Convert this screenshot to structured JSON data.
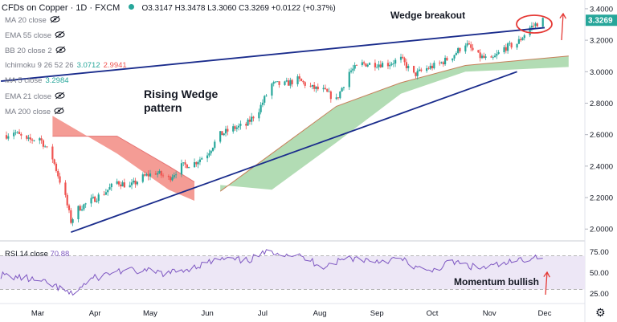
{
  "header": {
    "title": "CFDs on Copper · 1D · FXCM",
    "ohlc_text": "O3.3147 H3.3478 L3.3060 C3.3269 +0.0122 (+0.37%)"
  },
  "indicators": [
    {
      "label": "MA 20 close",
      "value": "",
      "value2": "",
      "hidden": true
    },
    {
      "label": "EMA 55 close",
      "value": "",
      "value2": "",
      "hidden": true
    },
    {
      "label": "BB 20 close 2",
      "value": "",
      "value2": "",
      "hidden": true
    },
    {
      "label": "Ichimoku 9 26 52 26",
      "value": "3.0712",
      "value2": "2.9941",
      "hidden": false
    },
    {
      "label": "MA 5 close",
      "value": "3.2984",
      "value2": "",
      "hidden": false
    },
    {
      "label": "EMA 21 close",
      "value": "",
      "value2": "",
      "hidden": true
    },
    {
      "label": "MA 200 close",
      "value": "",
      "value2": "",
      "hidden": true
    }
  ],
  "rsi": {
    "label": "RSI 14 close",
    "value": "70.88"
  },
  "colors": {
    "up": "#26a69a",
    "down": "#ef5350",
    "trend": "#1a2c8c",
    "cloud_bull": "#a5d6a7",
    "cloud_bear": "#f28b82",
    "rsi_line": "#7e57c2",
    "rsi_band": "#ede7f6",
    "price_tag": "#26a69a",
    "annot": "#e53935"
  },
  "chart_data": {
    "type": "candlestick",
    "symbol": "CFDs on Copper",
    "timeframe": "1D",
    "x_tick_labels": [
      "Mar",
      "Apr",
      "May",
      "Jun",
      "Jul",
      "Aug",
      "Sep",
      "Oct",
      "Nov",
      "Dec"
    ],
    "y_tick_labels": [
      "3.4000",
      "3.2000",
      "3.0000",
      "2.8000",
      "2.6000",
      "2.4000",
      "2.2000",
      "2.0000"
    ],
    "ylim": [
      1.94,
      3.42
    ],
    "last_price": "3.3269",
    "price_path": [
      [
        "2020-02-10",
        2.58
      ],
      [
        "2020-02-17",
        2.62
      ],
      [
        "2020-02-24",
        2.56
      ],
      [
        "2020-03-02",
        2.58
      ],
      [
        "2020-03-09",
        2.45
      ],
      [
        "2020-03-16",
        2.2
      ],
      [
        "2020-03-19",
        2.05
      ],
      [
        "2020-03-23",
        2.13
      ],
      [
        "2020-03-30",
        2.18
      ],
      [
        "2020-04-06",
        2.23
      ],
      [
        "2020-04-13",
        2.3
      ],
      [
        "2020-04-20",
        2.27
      ],
      [
        "2020-04-27",
        2.33
      ],
      [
        "2020-05-04",
        2.36
      ],
      [
        "2020-05-11",
        2.32
      ],
      [
        "2020-05-18",
        2.4
      ],
      [
        "2020-05-25",
        2.42
      ],
      [
        "2020-06-01",
        2.48
      ],
      [
        "2020-06-08",
        2.6
      ],
      [
        "2020-06-15",
        2.64
      ],
      [
        "2020-06-22",
        2.66
      ],
      [
        "2020-06-29",
        2.76
      ],
      [
        "2020-07-06",
        2.92
      ],
      [
        "2020-07-13",
        2.92
      ],
      [
        "2020-07-20",
        2.95
      ],
      [
        "2020-07-27",
        2.9
      ],
      [
        "2020-08-03",
        2.88
      ],
      [
        "2020-08-10",
        2.82
      ],
      [
        "2020-08-17",
        3.0
      ],
      [
        "2020-08-24",
        3.05
      ],
      [
        "2020-08-31",
        3.05
      ],
      [
        "2020-09-07",
        3.05
      ],
      [
        "2020-09-14",
        3.08
      ],
      [
        "2020-09-21",
        2.98
      ],
      [
        "2020-09-28",
        3.02
      ],
      [
        "2020-10-05",
        3.05
      ],
      [
        "2020-10-12",
        3.1
      ],
      [
        "2020-10-19",
        3.18
      ],
      [
        "2020-10-26",
        3.1
      ],
      [
        "2020-11-02",
        3.07
      ],
      [
        "2020-11-09",
        3.15
      ],
      [
        "2020-11-16",
        3.18
      ],
      [
        "2020-11-23",
        3.28
      ],
      [
        "2020-11-30",
        3.3269
      ]
    ],
    "ichimoku_cloud": {
      "bearish_segment": [
        [
          "2020-03-09",
          2.72,
          2.59
        ],
        [
          "2020-04-13",
          2.48,
          2.59
        ],
        [
          "2020-05-11",
          2.25,
          2.4
        ],
        [
          "2020-05-25",
          2.18,
          2.3
        ]
      ],
      "bullish_segment": [
        [
          "2020-06-08",
          2.28,
          2.24
        ],
        [
          "2020-07-06",
          2.25,
          2.48
        ],
        [
          "2020-08-10",
          2.55,
          2.78
        ],
        [
          "2020-09-14",
          2.86,
          2.93
        ],
        [
          "2020-10-19",
          3.0,
          3.04
        ],
        [
          "2020-12-14",
          3.03,
          3.1
        ]
      ]
    },
    "trendlines": [
      {
        "name": "upper",
        "from": [
          "2020-02-10",
          2.94
        ],
        "to": [
          "2020-12-01",
          3.28
        ]
      },
      {
        "name": "lower",
        "from": [
          "2020-03-19",
          1.98
        ],
        "to": [
          "2020-11-16",
          3.0
        ]
      }
    ],
    "annotations": [
      "Wedge breakout",
      "Rising Wedge pattern",
      "Momentum bullish"
    ],
    "rsi_panel": {
      "y_tick_labels": [
        "75.00",
        "50.00",
        "25.00"
      ],
      "ylim": [
        15,
        85
      ],
      "band": [
        30,
        70
      ],
      "values": [
        [
          "2020-02-10",
          47
        ],
        [
          "2020-02-24",
          43
        ],
        [
          "2020-03-09",
          35
        ],
        [
          "2020-03-19",
          24
        ],
        [
          "2020-03-30",
          42
        ],
        [
          "2020-04-13",
          52
        ],
        [
          "2020-04-27",
          52
        ],
        [
          "2020-05-11",
          49
        ],
        [
          "2020-05-25",
          57
        ],
        [
          "2020-06-08",
          66
        ],
        [
          "2020-06-22",
          64
        ],
        [
          "2020-07-06",
          76
        ],
        [
          "2020-07-20",
          70
        ],
        [
          "2020-08-03",
          58
        ],
        [
          "2020-08-17",
          68
        ],
        [
          "2020-08-31",
          64
        ],
        [
          "2020-09-14",
          66
        ],
        [
          "2020-09-28",
          50
        ],
        [
          "2020-10-12",
          63
        ],
        [
          "2020-10-26",
          55
        ],
        [
          "2020-11-09",
          60
        ],
        [
          "2020-11-23",
          68
        ],
        [
          "2020-11-30",
          70.88
        ]
      ]
    }
  }
}
